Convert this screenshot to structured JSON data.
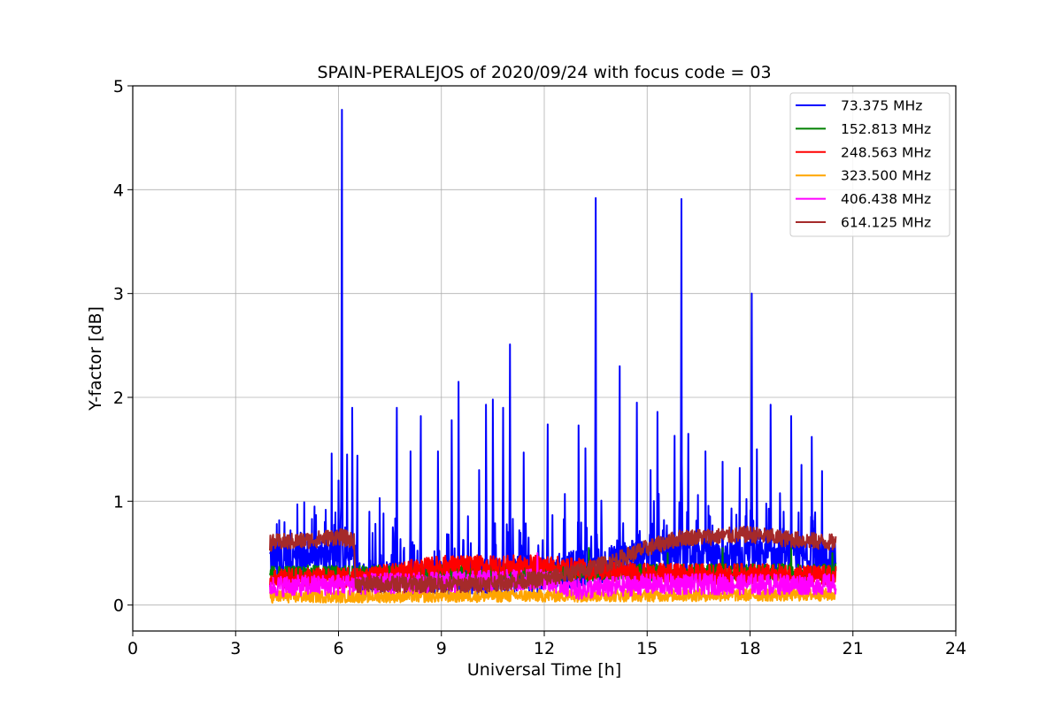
{
  "chart_data": {
    "type": "line",
    "title": "SPAIN-PERALEJOS of 2020/09/24 with focus code = 03",
    "xlabel": "Universal Time [h]",
    "ylabel": "Y-factor [dB]",
    "xlim": [
      0,
      24
    ],
    "ylim": [
      -0.25,
      5
    ],
    "xticks": [
      "0",
      "3",
      "6",
      "9",
      "12",
      "15",
      "18",
      "21",
      "24"
    ],
    "yticks": [
      "0",
      "1",
      "2",
      "3",
      "4",
      "5"
    ],
    "grid": true,
    "legend_position": "top-right",
    "time_range": [
      4.0,
      20.5
    ],
    "series": [
      {
        "name": " 73.375 MHz",
        "color": "#0000ff",
        "baseline": [
          [
            4.0,
            0.45
          ],
          [
            6.5,
            0.45
          ],
          [
            6.6,
            0.25
          ],
          [
            9,
            0.25
          ],
          [
            12,
            0.3
          ],
          [
            14,
            0.4
          ],
          [
            15,
            0.48
          ],
          [
            17,
            0.45
          ],
          [
            20.5,
            0.45
          ]
        ],
        "noise": 0.18,
        "peaks": [
          [
            4.2,
            0.78
          ],
          [
            4.6,
            0.72
          ],
          [
            4.8,
            0.97
          ],
          [
            5.0,
            0.99
          ],
          [
            5.3,
            0.95
          ],
          [
            5.6,
            0.8
          ],
          [
            5.8,
            1.46
          ],
          [
            6.0,
            1.2
          ],
          [
            6.1,
            4.77
          ],
          [
            6.25,
            1.45
          ],
          [
            6.4,
            1.9
          ],
          [
            6.55,
            1.44
          ],
          [
            6.9,
            0.9
          ],
          [
            7.2,
            1.03
          ],
          [
            7.7,
            1.9
          ],
          [
            8.1,
            1.48
          ],
          [
            8.4,
            1.82
          ],
          [
            8.9,
            1.48
          ],
          [
            9.3,
            1.78
          ],
          [
            9.5,
            2.15
          ],
          [
            10.1,
            1.3
          ],
          [
            10.3,
            1.93
          ],
          [
            10.5,
            1.98
          ],
          [
            10.8,
            1.9
          ],
          [
            11.0,
            2.51
          ],
          [
            11.4,
            1.47
          ],
          [
            12.1,
            1.74
          ],
          [
            12.6,
            1.07
          ],
          [
            13.0,
            1.73
          ],
          [
            13.2,
            1.51
          ],
          [
            13.5,
            3.92
          ],
          [
            14.2,
            2.3
          ],
          [
            14.7,
            1.95
          ],
          [
            15.1,
            1.3
          ],
          [
            15.3,
            1.86
          ],
          [
            15.8,
            1.63
          ],
          [
            16.0,
            3.91
          ],
          [
            16.2,
            1.65
          ],
          [
            16.7,
            1.48
          ],
          [
            17.2,
            1.38
          ],
          [
            17.7,
            1.32
          ],
          [
            18.05,
            3.0
          ],
          [
            18.2,
            1.5
          ],
          [
            18.6,
            1.93
          ],
          [
            19.2,
            1.82
          ],
          [
            19.5,
            1.35
          ],
          [
            19.8,
            1.62
          ],
          [
            20.1,
            1.29
          ]
        ]
      },
      {
        "name": "152.813 MHz",
        "color": "#008000",
        "baseline": [
          [
            4.0,
            0.3
          ],
          [
            20.5,
            0.32
          ]
        ],
        "noise": 0.08,
        "peaks": [
          [
            13.3,
            0.55
          ],
          [
            15.6,
            0.5
          ],
          [
            17.2,
            0.55
          ],
          [
            19.2,
            0.55
          ],
          [
            20.4,
            0.5
          ]
        ]
      },
      {
        "name": "248.563 MHz",
        "color": "#ff0000",
        "baseline": [
          [
            4.0,
            0.26
          ],
          [
            6.5,
            0.26
          ],
          [
            7,
            0.28
          ],
          [
            9,
            0.38
          ],
          [
            12,
            0.38
          ],
          [
            13,
            0.35
          ],
          [
            15,
            0.3
          ],
          [
            18,
            0.3
          ],
          [
            20.5,
            0.28
          ]
        ],
        "noise": 0.1,
        "peaks": []
      },
      {
        "name": "323.500 MHz",
        "color": "#ffa500",
        "baseline": [
          [
            4.0,
            0.08
          ],
          [
            20.5,
            0.1
          ]
        ],
        "noise": 0.06,
        "peaks": []
      },
      {
        "name": "406.438 MHz",
        "color": "#ff00ff",
        "baseline": [
          [
            4.0,
            0.18
          ],
          [
            9,
            0.22
          ],
          [
            12,
            0.25
          ],
          [
            13,
            0.15
          ],
          [
            15,
            0.2
          ],
          [
            20.5,
            0.2
          ]
        ],
        "noise": 0.1,
        "peaks": [
          [
            11.8,
            0.5
          ]
        ]
      },
      {
        "name": "614.125 MHz",
        "color": "#a52a2a",
        "baseline": [
          [
            4.0,
            0.6
          ],
          [
            5,
            0.62
          ],
          [
            6,
            0.66
          ],
          [
            6.45,
            0.62
          ],
          [
            6.5,
            0.2
          ],
          [
            8,
            0.2
          ],
          [
            10,
            0.2
          ],
          [
            12,
            0.25
          ],
          [
            13,
            0.32
          ],
          [
            14,
            0.42
          ],
          [
            15,
            0.55
          ],
          [
            16,
            0.65
          ],
          [
            17,
            0.66
          ],
          [
            18,
            0.68
          ],
          [
            19,
            0.64
          ],
          [
            20.5,
            0.6
          ]
        ],
        "noise": 0.08,
        "peaks": []
      }
    ]
  }
}
